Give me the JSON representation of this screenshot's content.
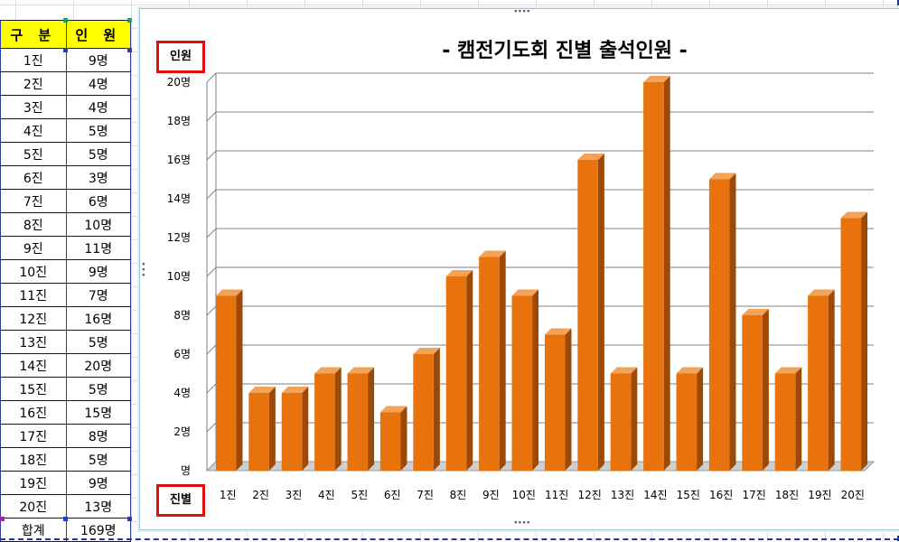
{
  "table": {
    "header_a": "구 분",
    "header_b": "인 원",
    "rows": [
      {
        "a": "1진",
        "b": "9명"
      },
      {
        "a": "2진",
        "b": "4명"
      },
      {
        "a": "3진",
        "b": "4명"
      },
      {
        "a": "4진",
        "b": "5명"
      },
      {
        "a": "5진",
        "b": "5명"
      },
      {
        "a": "6진",
        "b": "3명"
      },
      {
        "a": "7진",
        "b": "6명"
      },
      {
        "a": "8진",
        "b": "10명"
      },
      {
        "a": "9진",
        "b": "11명"
      },
      {
        "a": "10진",
        "b": "9명"
      },
      {
        "a": "11진",
        "b": "7명"
      },
      {
        "a": "12진",
        "b": "16명"
      },
      {
        "a": "13진",
        "b": "5명"
      },
      {
        "a": "14진",
        "b": "20명"
      },
      {
        "a": "15진",
        "b": "5명"
      },
      {
        "a": "16진",
        "b": "15명"
      },
      {
        "a": "17진",
        "b": "8명"
      },
      {
        "a": "18진",
        "b": "5명"
      },
      {
        "a": "19진",
        "b": "9명"
      },
      {
        "a": "20진",
        "b": "13명"
      }
    ],
    "total_label": "합계",
    "total_value": "169명"
  },
  "colors": {
    "bar_front": "#e8720c",
    "bar_side": "#9c4a08",
    "bar_top": "#f3a25a",
    "header_bg": "#ffff00",
    "label_box_border": "#e01010"
  },
  "chart_data": {
    "type": "bar",
    "title": "- 캠전기도회 진별 출석인원 -",
    "ylabel": "인원",
    "xlabel": "진별",
    "categories": [
      "1진",
      "2진",
      "3진",
      "4진",
      "5진",
      "6진",
      "7진",
      "8진",
      "9진",
      "10진",
      "11진",
      "12진",
      "13진",
      "14진",
      "15진",
      "16진",
      "17진",
      "18진",
      "19진",
      "20진"
    ],
    "values": [
      9,
      4,
      4,
      5,
      5,
      3,
      6,
      10,
      11,
      9,
      7,
      16,
      5,
      20,
      5,
      15,
      8,
      5,
      9,
      13
    ],
    "ylim": [
      0,
      20
    ],
    "yticks": [
      "명",
      "2명",
      "4명",
      "6명",
      "8명",
      "10명",
      "12명",
      "14명",
      "16명",
      "18명",
      "20명"
    ],
    "grid": true,
    "style": "3d-column"
  }
}
